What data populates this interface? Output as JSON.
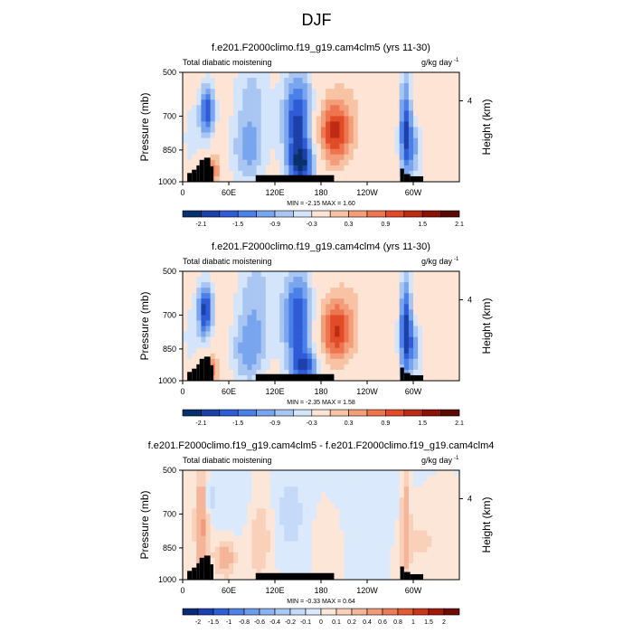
{
  "figure_title": "DJF",
  "chart_data": [
    {
      "type": "heatmap",
      "title": "f.e201.F2000climo.f19_g19.cam4clm5 (yrs 11-30)",
      "left_label": "Total diabatic moistening",
      "right_label": "g/kg day",
      "units_exponent": "-1",
      "ylabel": "Pressure (mb)",
      "ylabel_right": "Height (km)",
      "yticks": [
        "500",
        "700",
        "850",
        "1000"
      ],
      "yticks_right": [
        "4"
      ],
      "xticks": [
        "0",
        "60E",
        "120E",
        "180",
        "120W",
        "60W"
      ],
      "xlim": [
        0,
        360
      ],
      "stats": "MIN = -2.15   MAX = 1.60",
      "colorbar_labels": [
        "-2.1",
        "-1.5",
        "-0.9",
        "-0.3",
        "0.3",
        "0.9",
        "1.5",
        "2.1"
      ]
    },
    {
      "type": "heatmap",
      "title": "f.e201.F2000climo.f19_g19.cam4clm4 (yrs 11-30)",
      "left_label": "Total diabatic moistening",
      "right_label": "g/kg day",
      "units_exponent": "-1",
      "ylabel": "Pressure (mb)",
      "ylabel_right": "Height (km)",
      "yticks": [
        "500",
        "700",
        "850",
        "1000"
      ],
      "yticks_right": [
        "4"
      ],
      "xticks": [
        "0",
        "60E",
        "120E",
        "180",
        "120W",
        "60W"
      ],
      "xlim": [
        0,
        360
      ],
      "stats": "MIN = -2.35   MAX = 1.58",
      "colorbar_labels": [
        "-2.1",
        "-1.5",
        "-0.9",
        "-0.3",
        "0.3",
        "0.9",
        "1.5",
        "2.1"
      ]
    },
    {
      "type": "heatmap",
      "title": "f.e201.F2000climo.f19_g19.cam4clm5 - f.e201.F2000climo.f19_g19.cam4clm4",
      "left_label": "Total diabatic moistening",
      "right_label": "g/kg day",
      "units_exponent": "-1",
      "ylabel": "Pressure (mb)",
      "ylabel_right": "Height (km)",
      "yticks": [
        "500",
        "700",
        "850",
        "1000"
      ],
      "yticks_right": [
        "4"
      ],
      "xticks": [
        "0",
        "60E",
        "120E",
        "180",
        "120W",
        "60W"
      ],
      "xlim": [
        0,
        360
      ],
      "stats": "MIN = -0.33   MAX = 0.64",
      "colorbar_labels": [
        "-2",
        "-1.5",
        "-1",
        "-0.8",
        "-0.6",
        "-0.4",
        "-0.2",
        "-0.1",
        "0",
        "0.1",
        "0.2",
        "0.4",
        "0.6",
        "0.8",
        "1",
        "1.5",
        "2"
      ]
    }
  ],
  "colors": {
    "scale": [
      "#08306b",
      "#1c3fa8",
      "#2f5cd6",
      "#4a80e8",
      "#79a5ee",
      "#a9c6f3",
      "#d4e4fb",
      "#fde4d4",
      "#f8c3a4",
      "#f39d79",
      "#ee7550",
      "#e14b28",
      "#bc2b12",
      "#8a1206",
      "#5a0a03"
    ],
    "diff_scale": [
      "#0a2a78",
      "#1b40b0",
      "#2d5fd8",
      "#4f84e6",
      "#6c9deb",
      "#8ab3ef",
      "#a8c7f3",
      "#c5daf8",
      "#dbe9fc",
      "#fce6d8",
      "#f9d0ba",
      "#f5b598",
      "#f19a77",
      "#ec7c55",
      "#e35a33",
      "#c93718",
      "#a11a09",
      "#6e0c04"
    ],
    "land": "#000000"
  }
}
